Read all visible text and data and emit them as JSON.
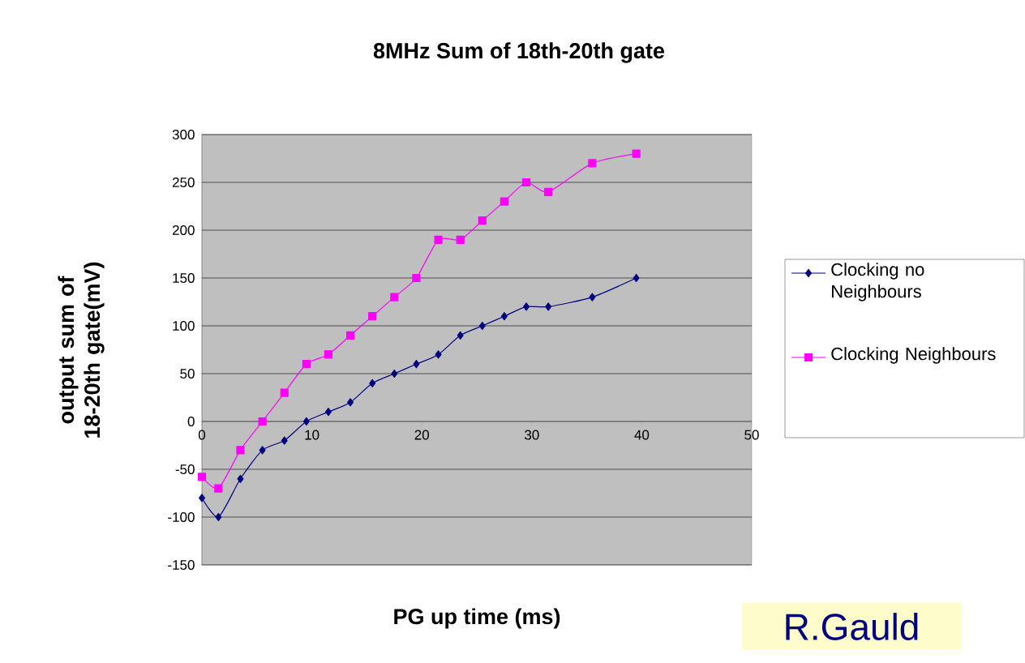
{
  "chart_data": {
    "type": "line",
    "title": "8MHz   Sum of 18th-20th gate",
    "xlabel": "PG up time (ms)",
    "ylabel": "output sum of 18-20th gate(mV)",
    "xlim": [
      0,
      50
    ],
    "xticks": [
      0,
      10,
      20,
      30,
      40,
      50
    ],
    "ylim": [
      -150,
      300
    ],
    "yticks": [
      -150,
      -100,
      -50,
      0,
      50,
      100,
      150,
      200,
      250,
      300
    ],
    "grid": "y",
    "legend": "right",
    "annotations": [
      "R.Gauld"
    ],
    "x": [
      0,
      1.5,
      3.5,
      5.5,
      7.5,
      9.5,
      11.5,
      13.5,
      15.5,
      17.5,
      19.5,
      21.5,
      23.5,
      25.5,
      27.5,
      29.5,
      31.5,
      35.5,
      39.5
    ],
    "series": [
      {
        "name": "Clocking no Neighbours",
        "color": "#000080",
        "marker": "diamond",
        "values": [
          -80,
          -100,
          -60,
          -30,
          -20,
          0,
          10,
          20,
          40,
          50,
          60,
          70,
          90,
          100,
          110,
          120,
          120,
          130,
          150
        ]
      },
      {
        "name": "Clocking Neighbours",
        "color": "#ff00ff",
        "marker": "square",
        "values": [
          -58,
          -70,
          -30,
          0,
          30,
          60,
          70,
          90,
          110,
          130,
          150,
          190,
          190,
          210,
          230,
          250,
          240,
          270,
          280
        ]
      }
    ]
  }
}
